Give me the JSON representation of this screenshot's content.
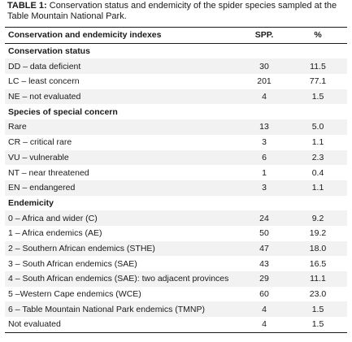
{
  "caption": {
    "label": "TABLE 1:",
    "text": " Conservation status and endemicity of the spider species sampled at the Table Mountain National Park."
  },
  "columns": {
    "index": "Conservation and endemicity indexes",
    "spp": "SPP.",
    "pct": "%"
  },
  "rows": [
    {
      "type": "section",
      "label": "Conservation status"
    },
    {
      "type": "data",
      "label": "DD – data deficient",
      "spp": "30",
      "pct": "11.5"
    },
    {
      "type": "data",
      "label": "LC – least concern",
      "spp": "201",
      "pct": "77.1"
    },
    {
      "type": "data",
      "label": "NE – not evaluated",
      "spp": "4",
      "pct": "1.5"
    },
    {
      "type": "section",
      "label": "Species of special concern"
    },
    {
      "type": "data",
      "label": "Rare",
      "spp": "13",
      "pct": "5.0"
    },
    {
      "type": "data",
      "label": "CR – critical rare",
      "spp": "3",
      "pct": "1.1"
    },
    {
      "type": "data",
      "label": "VU – vulnerable",
      "spp": "6",
      "pct": "2.3"
    },
    {
      "type": "data",
      "label": "NT – near threatened",
      "spp": "1",
      "pct": "0.4"
    },
    {
      "type": "data",
      "label": "EN – endangered",
      "spp": "3",
      "pct": "1.1"
    },
    {
      "type": "section",
      "label": "Endemicity"
    },
    {
      "type": "data",
      "label": "0 – Africa and wider (C)",
      "spp": "24",
      "pct": "9.2"
    },
    {
      "type": "data",
      "label": "1 – Africa endemics (AE)",
      "spp": "50",
      "pct": "19.2"
    },
    {
      "type": "data",
      "label": "2 – Southern African endemics (STHE)",
      "spp": "47",
      "pct": "18.0"
    },
    {
      "type": "data",
      "label": "3 – South African endemics (SAE)",
      "spp": "43",
      "pct": "16.5"
    },
    {
      "type": "data",
      "label": "4 – South African endemics (SAE): two adjacent provinces",
      "spp": "29",
      "pct": "11.1"
    },
    {
      "type": "data",
      "label": "5 –Western Cape endemics (WCE)",
      "spp": "60",
      "pct": "23.0"
    },
    {
      "type": "data",
      "label": "6 – Table Mountain National Park endemics (TMNP)",
      "spp": "4",
      "pct": "1.5"
    },
    {
      "type": "data",
      "label": "Not evaluated",
      "spp": "4",
      "pct": "1.5"
    }
  ]
}
